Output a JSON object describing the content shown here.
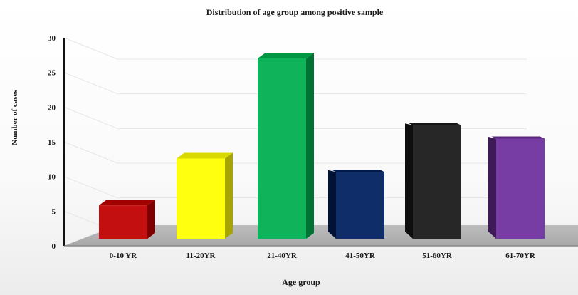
{
  "chart_data": {
    "type": "bar",
    "title": "Distribution  of age group  among positive sample",
    "xlabel": "Age group",
    "ylabel": "Number of cases",
    "ylim": [
      0,
      30
    ],
    "yticks": [
      0,
      5,
      10,
      15,
      20,
      25,
      30
    ],
    "categories": [
      "0-10 YR",
      "11-20YR",
      "21-40YR",
      "41-50YR",
      "51-60YR",
      "61-70YR"
    ],
    "values": [
      5,
      12,
      27,
      10,
      17,
      15
    ],
    "colors": [
      "#c00000",
      "#ffff00",
      "#00b050",
      "#002060",
      "#1a1a1a",
      "#7030a0"
    ],
    "legend": "none",
    "grid": true,
    "style": "3d-column"
  }
}
